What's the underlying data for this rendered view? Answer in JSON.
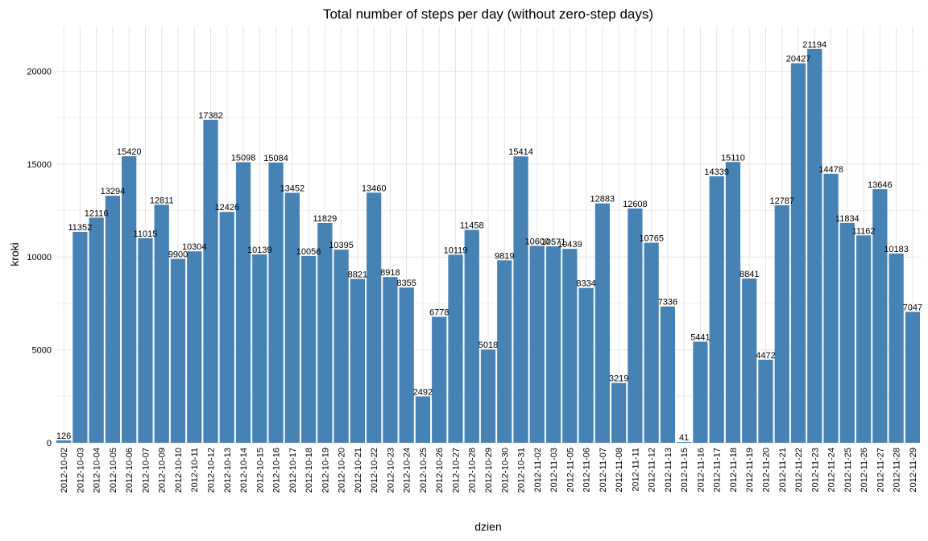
{
  "chart_data": {
    "type": "bar",
    "title": "Total number of steps per day (without zero-step days)",
    "xlabel": "dzien",
    "ylabel": "kroki",
    "ylim": [
      0,
      22400
    ],
    "yticks": [
      0,
      5000,
      10000,
      15000,
      20000
    ],
    "grid": true,
    "bar_color": "#4682B4",
    "categories": [
      "2012-10-02",
      "2012-10-03",
      "2012-10-04",
      "2012-10-05",
      "2012-10-06",
      "2012-10-07",
      "2012-10-09",
      "2012-10-10",
      "2012-10-11",
      "2012-10-12",
      "2012-10-13",
      "2012-10-14",
      "2012-10-15",
      "2012-10-16",
      "2012-10-17",
      "2012-10-18",
      "2012-10-19",
      "2012-10-20",
      "2012-10-21",
      "2012-10-22",
      "2012-10-23",
      "2012-10-24",
      "2012-10-25",
      "2012-10-26",
      "2012-10-27",
      "2012-10-28",
      "2012-10-29",
      "2012-10-30",
      "2012-10-31",
      "2012-11-02",
      "2012-11-03",
      "2012-11-05",
      "2012-11-06",
      "2012-11-07",
      "2012-11-08",
      "2012-11-11",
      "2012-11-12",
      "2012-11-13",
      "2012-11-15",
      "2012-11-16",
      "2012-11-17",
      "2012-11-18",
      "2012-11-19",
      "2012-11-20",
      "2012-11-21",
      "2012-11-22",
      "2012-11-23",
      "2012-11-24",
      "2012-11-25",
      "2012-11-26",
      "2012-11-27",
      "2012-11-28",
      "2012-11-29"
    ],
    "values": [
      126,
      11352,
      12116,
      13294,
      15420,
      11015,
      12811,
      9900,
      10304,
      17382,
      12426,
      15098,
      10139,
      15084,
      13452,
      10056,
      11829,
      10395,
      8821,
      13460,
      8918,
      8355,
      2492,
      6778,
      10119,
      11458,
      5018,
      9819,
      15414,
      10600,
      10571,
      10439,
      8334,
      12883,
      3219,
      12608,
      10765,
      7336,
      41,
      5441,
      14339,
      15110,
      8841,
      4472,
      12787,
      20427,
      21194,
      14478,
      11834,
      11162,
      13646,
      10183,
      7047
    ]
  }
}
